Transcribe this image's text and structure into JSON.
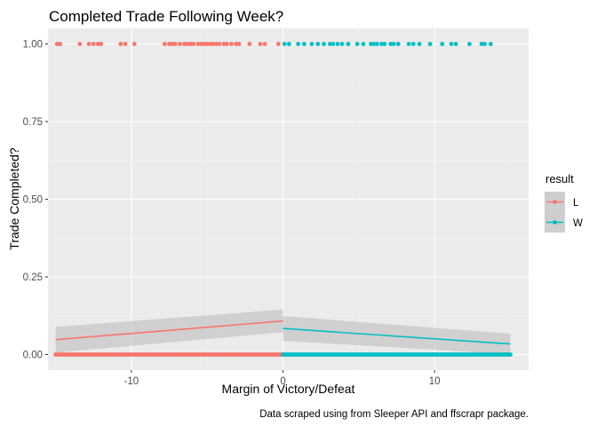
{
  "chart_data": {
    "type": "scatter",
    "title": "Completed Trade Following Week?",
    "xlabel": "Margin of Victory/Defeat",
    "ylabel": "Trade Completed?",
    "caption": "Data scraped using from Sleeper API and ffscrapr package.",
    "xlim": [
      -15.5,
      16.2
    ],
    "ylim": [
      -0.05,
      1.05
    ],
    "x_ticks": [
      -10,
      0,
      10
    ],
    "x_tick_labels": [
      "-10",
      "0",
      "10"
    ],
    "y_ticks": [
      0,
      0.25,
      0.5,
      0.75,
      1
    ],
    "y_tick_labels": [
      "0.00",
      "0.25",
      "0.50",
      "0.75",
      "1.00"
    ],
    "grid": true,
    "legend": {
      "title": "result",
      "placement": "right",
      "entries": [
        {
          "label": "L",
          "color": "#F8766D"
        },
        {
          "label": "W",
          "color": "#00BFC4"
        }
      ]
    },
    "colors": {
      "panel": "#EBEBEB",
      "grid_major": "#FFFFFF",
      "ribbon": "#BEBEBE",
      "L": "#F8766D",
      "W": "#00BFC4"
    },
    "series": [
      {
        "name": "L",
        "color": "#F8766D",
        "points_y1": [
          -14.9,
          -14.7,
          -13.4,
          -12.8,
          -12.5,
          -12.2,
          -12.0,
          -10.7,
          -10.4,
          -9.8,
          -7.8,
          -7.5,
          -7.3,
          -7.1,
          -6.8,
          -6.5,
          -6.3,
          -6.1,
          -5.9,
          -5.6,
          -5.4,
          -5.2,
          -5.0,
          -4.8,
          -4.6,
          -4.4,
          -4.2,
          -3.9,
          -3.7,
          -3.4,
          -3.1,
          -2.9,
          -2.2,
          -1.5,
          -1.2,
          -0.3
        ],
        "points_y0_ranges": [
          [
            -15.0,
            0.0
          ]
        ],
        "fit": {
          "x": [
            -15,
            0
          ],
          "y": [
            0.048,
            0.108
          ],
          "lower": [
            0.006,
            0.072
          ],
          "upper": [
            0.089,
            0.145
          ]
        }
      },
      {
        "name": "W",
        "color": "#00BFC4",
        "points_y1": [
          0.1,
          0.4,
          1.0,
          1.4,
          1.9,
          2.3,
          2.7,
          3.1,
          3.3,
          3.6,
          3.9,
          4.3,
          4.9,
          5.3,
          5.8,
          6.0,
          6.2,
          6.5,
          6.7,
          7.1,
          7.3,
          7.6,
          8.3,
          8.6,
          9.0,
          9.7,
          10.5,
          11.1,
          11.4,
          12.3,
          13.1,
          13.3,
          13.7
        ],
        "points_y0_ranges": [
          [
            0.0,
            15.0
          ]
        ],
        "fit": {
          "x": [
            0,
            15
          ],
          "y": [
            0.084,
            0.034
          ],
          "lower": [
            0.044,
            0.001
          ],
          "upper": [
            0.124,
            0.067
          ]
        }
      }
    ]
  }
}
